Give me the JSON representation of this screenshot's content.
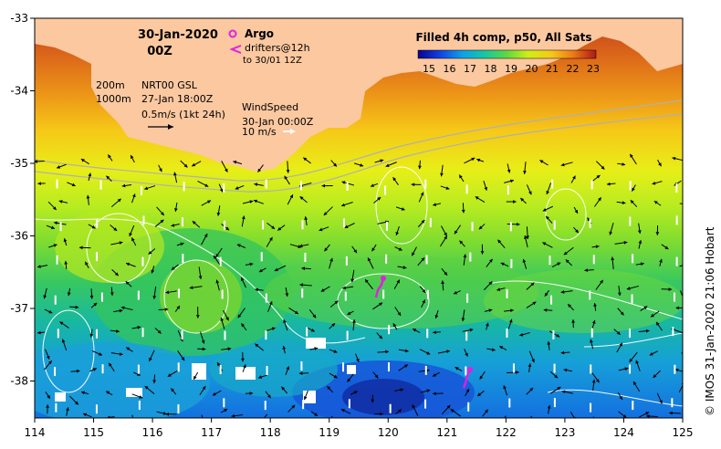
{
  "map": {
    "date": "30-Jan-2020",
    "time": "00Z",
    "argo_label": "Argo",
    "drifters_label": "drifters@12h",
    "drifters_to": "to 30/01 12Z",
    "colorbar_title": "Filled 4h comp, p50, All Sats",
    "colorbar_ticks": [
      "15",
      "16",
      "17",
      "18",
      "19",
      "20",
      "21",
      "22",
      "23"
    ],
    "depth_200": "200m",
    "depth_1000": "1000m",
    "nrt_label": "NRT00 GSL",
    "nrt_date": "27-Jan 18:00Z",
    "current_scale": "0.5m/s (1kt 24h)",
    "wind_title": "WindSpeed",
    "wind_date": "30-Jan 00:00Z",
    "wind_scale": "10 m/s",
    "copyright": "© IMOS 31-Jan-2020 21:06 Hobart",
    "lon_ticks": [
      "114",
      "115",
      "116",
      "117",
      "118",
      "119",
      "120",
      "121",
      "122",
      "123",
      "124",
      "125"
    ],
    "lat_ticks": [
      "-33",
      "-34",
      "-35",
      "-36",
      "-37",
      "-38"
    ],
    "colors": {
      "land": "#fbc8a0",
      "argo": "#e020e0",
      "drifter": "#e020e0"
    }
  }
}
